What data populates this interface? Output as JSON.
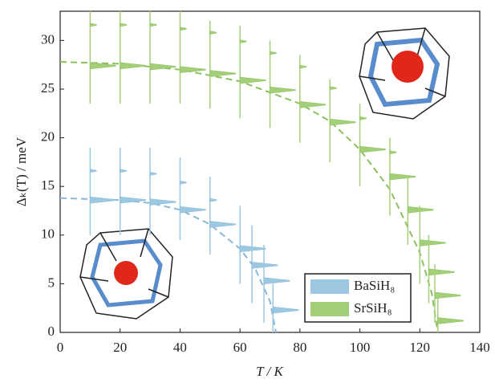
{
  "chart_data": {
    "type": "gap-distribution",
    "xlabel": "T / K",
    "ylabel": "Δₖ(T) / meV",
    "xlim": [
      0,
      140
    ],
    "xticks": [
      0,
      20,
      40,
      60,
      80,
      100,
      120,
      140
    ],
    "ylim": [
      0,
      33
    ],
    "yticks": [
      0,
      5,
      10,
      15,
      20,
      25,
      30
    ],
    "legend": "lower right",
    "series": [
      {
        "name": "BaSiH₈",
        "color": "#9cc8e2",
        "line_color": "#8ab9d8",
        "x": [
          10,
          20,
          30,
          40,
          50,
          60,
          64,
          68,
          71
        ],
        "min": [
          10,
          10,
          10,
          9.5,
          8,
          5,
          3,
          1,
          0
        ],
        "max": [
          19,
          19,
          19,
          18,
          16,
          13,
          11,
          9,
          5
        ],
        "peak": [
          13.6,
          13.6,
          13.4,
          12.6,
          11.1,
          8.6,
          6.9,
          5.3,
          2.3
        ],
        "secondary": [
          16.6,
          16.6,
          16.3,
          15.4,
          13.6,
          null,
          null,
          null,
          null
        ],
        "fit": {
          "x": [
            0,
            10,
            20,
            30,
            40,
            50,
            60,
            65,
            70,
            72
          ],
          "y": [
            13.8,
            13.7,
            13.6,
            13.3,
            12.6,
            11.1,
            8.6,
            6.6,
            3.2,
            0
          ]
        }
      },
      {
        "name": "SrSiH₈",
        "color": "#a3cf78",
        "line_color": "#8dc05e",
        "x": [
          10,
          20,
          30,
          40,
          50,
          60,
          70,
          80,
          90,
          100,
          110,
          116,
          120,
          123,
          125,
          126
        ],
        "min": [
          23.5,
          23.5,
          23.5,
          23.5,
          23,
          22,
          21,
          19.5,
          17.5,
          15,
          12,
          9,
          5,
          3,
          1,
          0
        ],
        "max": [
          33,
          33,
          33,
          33,
          32,
          31.5,
          30,
          28.5,
          26,
          23.5,
          20,
          16,
          13,
          10,
          7,
          4
        ],
        "peak": [
          27.4,
          27.4,
          27.3,
          27,
          26.6,
          25.9,
          24.9,
          23.4,
          21.6,
          18.8,
          16,
          12.6,
          9.2,
          6.2,
          3.8,
          1.2
        ],
        "secondary": [
          31.6,
          31.6,
          31.6,
          31.2,
          30.8,
          29.9,
          28.7,
          27.3,
          25.1,
          22,
          18.5,
          null,
          null,
          null,
          null,
          null
        ],
        "fit": {
          "x": [
            0,
            20,
            40,
            60,
            80,
            90,
            100,
            110,
            120,
            124,
            126
          ],
          "y": [
            27.8,
            27.6,
            27.0,
            25.8,
            23.5,
            21.7,
            18.8,
            14.7,
            8.2,
            4,
            0
          ]
        }
      }
    ]
  }
}
